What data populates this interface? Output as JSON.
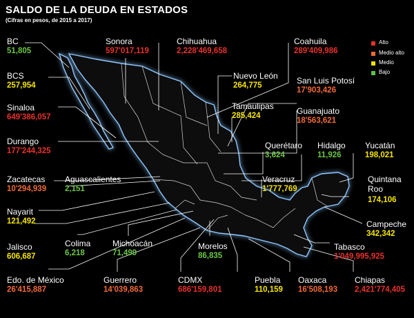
{
  "title": "SALDO DE LA DEUDA EN ESTADOS",
  "subtitle": "(Cifras en pesos, de 2015 a 2017)",
  "legend": [
    {
      "label": "Alto",
      "color": "#e8312b"
    },
    {
      "label": "Medio alto",
      "color": "#f26a35"
    },
    {
      "label": "Medio",
      "color": "#f5e400"
    },
    {
      "label": "Bajo",
      "color": "#5cc34a"
    }
  ],
  "colors": {
    "alto": "#e8312b",
    "medio_alto": "#f26a35",
    "medio": "#f5e400",
    "bajo": "#6cc644",
    "outline": "#8fc8ff",
    "glow": "#2e7bd6"
  },
  "states": [
    {
      "name": "BC",
      "value": "51,805",
      "level": "bajo"
    },
    {
      "name": "Sonora",
      "value": "597'017,119",
      "level": "alto"
    },
    {
      "name": "Chihuahua",
      "value": "2,228'469,658",
      "level": "alto"
    },
    {
      "name": "Coahuila",
      "value": "289'409,986",
      "level": "alto"
    },
    {
      "name": "BCS",
      "value": "257,954",
      "level": "medio"
    },
    {
      "name": "Nuevo León",
      "value": "264,775",
      "level": "medio"
    },
    {
      "name": "San Luis Potosí",
      "value": "17'903,426",
      "level": "medio_alto"
    },
    {
      "name": "Tamaulipas",
      "value": "285,424",
      "level": "medio"
    },
    {
      "name": "Sinaloa",
      "value": "649'386,057",
      "level": "alto"
    },
    {
      "name": "Guanajuato",
      "value": "18'563,621",
      "level": "medio_alto"
    },
    {
      "name": "Durango",
      "value": "177'244,325",
      "level": "alto"
    },
    {
      "name": "Querétaro",
      "value": "3,624",
      "level": "bajo"
    },
    {
      "name": "Hidalgo",
      "value": "11,926",
      "level": "bajo"
    },
    {
      "name": "Yucatán",
      "value": "198,021",
      "level": "medio"
    },
    {
      "name": "Zacatecas",
      "value": "10'294,939",
      "level": "medio_alto"
    },
    {
      "name": "Aguascalientes",
      "value": "2,151",
      "level": "bajo"
    },
    {
      "name": "Veracruz",
      "value": "1'777,769",
      "level": "medio"
    },
    {
      "name": "Quintana Roo",
      "value": "174,106",
      "level": "medio"
    },
    {
      "name": "Nayarit",
      "value": "121,492",
      "level": "medio"
    },
    {
      "name": "Campeche",
      "value": "342,342",
      "level": "medio"
    },
    {
      "name": "Jalisco",
      "value": "606,687",
      "level": "medio"
    },
    {
      "name": "Colima",
      "value": "6,218",
      "level": "bajo"
    },
    {
      "name": "Michoacán",
      "value": "71,499",
      "level": "bajo"
    },
    {
      "name": "Morelos",
      "value": "86,835",
      "level": "bajo"
    },
    {
      "name": "Tabasco",
      "value": "1'049,995,925",
      "level": "alto"
    },
    {
      "name": "Edo. de México",
      "value": "26'415,887",
      "level": "medio_alto"
    },
    {
      "name": "Guerrero",
      "value": "14'039,863",
      "level": "medio_alto"
    },
    {
      "name": "CDMX",
      "value": "686'159,801",
      "level": "alto"
    },
    {
      "name": "Puebla",
      "value": "110,159",
      "level": "medio"
    },
    {
      "name": "Oaxaca",
      "value": "16'508,193",
      "level": "medio_alto"
    },
    {
      "name": "Chiapas",
      "value": "2,421'774,405",
      "level": "alto"
    }
  ]
}
